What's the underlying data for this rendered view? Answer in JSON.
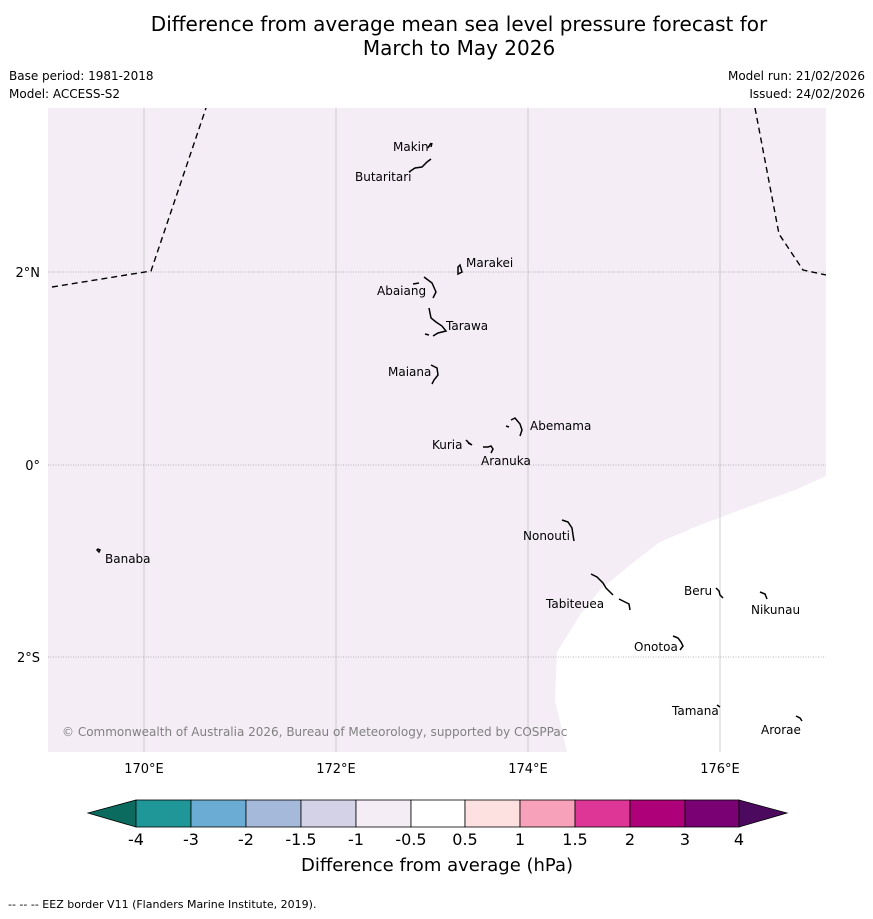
{
  "title": {
    "line1": "Difference from average mean sea level pressure forecast for",
    "line2": "March to May 2026"
  },
  "meta": {
    "base_period": "Base period: 1981-2018",
    "model": "Model: ACCESS-S2",
    "model_run": "Model run: 21/02/2026",
    "issued": "Issued: 24/02/2026"
  },
  "map": {
    "lon_range": [
      169,
      177.1
    ],
    "lat_range": [
      -3.0,
      3.75
    ],
    "lon_ticks": [
      {
        "value": 170,
        "label": "170°E"
      },
      {
        "value": 172,
        "label": "172°E"
      },
      {
        "value": 174,
        "label": "174°E"
      },
      {
        "value": 176,
        "label": "176°E"
      }
    ],
    "lat_ticks": [
      {
        "value": 2,
        "label": "2°N"
      },
      {
        "value": 0,
        "label": "0°"
      },
      {
        "value": -2,
        "label": "2°S"
      }
    ],
    "shaded_category": "-1 to -0.5",
    "shade_color": "#f4edf6",
    "unshaded_category": "-0.5 to 0.5",
    "copyright": "© Commonwealth of Australia 2026, Bureau of Meteorology, supported by COSPPac",
    "islands": [
      {
        "name": "Makin",
        "lon": 172.99,
        "lat": 3.3
      },
      {
        "name": "Butaritari",
        "lon": 172.88,
        "lat": 3.1
      },
      {
        "name": "Marakei",
        "lon": 173.27,
        "lat": 2.0
      },
      {
        "name": "Abaiang",
        "lon": 172.95,
        "lat": 1.8
      },
      {
        "name": "Tarawa",
        "lon": 172.99,
        "lat": 1.4
      },
      {
        "name": "Maiana",
        "lon": 173.0,
        "lat": 0.95
      },
      {
        "name": "Abemama",
        "lon": 173.88,
        "lat": 0.4
      },
      {
        "name": "Kuria",
        "lon": 173.42,
        "lat": 0.23
      },
      {
        "name": "Aranuka",
        "lon": 173.6,
        "lat": 0.17
      },
      {
        "name": "Banaba",
        "lon": 169.55,
        "lat": -0.87
      },
      {
        "name": "Nonouti",
        "lon": 174.4,
        "lat": -0.7
      },
      {
        "name": "Tabiteuea",
        "lon": 174.8,
        "lat": -1.35
      },
      {
        "name": "Beru",
        "lon": 176.0,
        "lat": -1.33
      },
      {
        "name": "Nikunau",
        "lon": 176.47,
        "lat": -1.35
      },
      {
        "name": "Onotoa",
        "lon": 175.55,
        "lat": -1.83
      },
      {
        "name": "Tamana",
        "lon": 175.98,
        "lat": -2.5
      },
      {
        "name": "Arorae",
        "lon": 176.82,
        "lat": -2.65
      }
    ]
  },
  "colorbar": {
    "label": "Difference from average (hPa)",
    "tick_labels": [
      "-4",
      "-3",
      "-2",
      "-1.5",
      "-1",
      "-0.5",
      "0.5",
      "1",
      "1.5",
      "2",
      "3",
      "4"
    ],
    "under_color": "#0b6b5e",
    "over_color": "#4b0a5e",
    "colors": [
      "#1f9698",
      "#6aacd3",
      "#a5b9da",
      "#d3d2e6",
      "#f4edf6",
      "#ffffff",
      "#fde0e0",
      "#f7a1bb",
      "#dd3697",
      "#ad0079",
      "#7a0174"
    ]
  },
  "footer": "--  --  -- EEZ border V11 (Flanders Marine Institute, 2019)."
}
